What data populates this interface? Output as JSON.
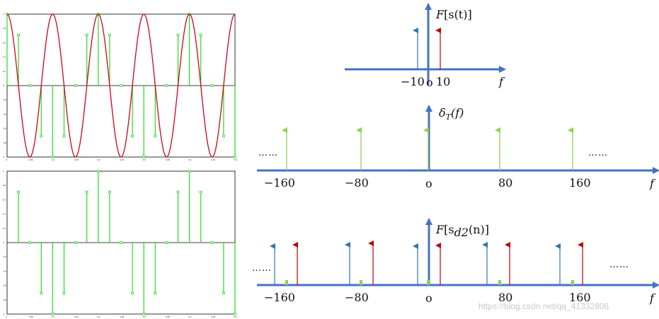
{
  "chart_data": [
    {
      "type": "line",
      "title": "",
      "xlabel": "",
      "ylabel": "",
      "xlim": [
        0,
        0.5
      ],
      "ylim": [
        -1,
        1
      ],
      "x_ticks": [
        "0",
        "0.05",
        "0.1",
        "0.15",
        "0.2",
        "0.25",
        "0.3",
        "0.35",
        "0.4",
        "0.45",
        "0.5"
      ],
      "y_ticks": [
        "1",
        "0.8",
        "0.6",
        "0.4",
        "0.2",
        "0",
        "-0.2",
        "-0.4",
        "-0.6",
        "-0.8",
        "-1"
      ],
      "series": [
        {
          "kind": "continuous",
          "function": "cos(2*pi*10*t)",
          "color": "#d0021b"
        },
        {
          "kind": "stem",
          "color": "#22dd22",
          "x": [
            0,
            0.025,
            0.05,
            0.075,
            0.1,
            0.125,
            0.15,
            0.175,
            0.2,
            0.225,
            0.25,
            0.275,
            0.3,
            0.325,
            0.35,
            0.375,
            0.4,
            0.425,
            0.45,
            0.475,
            0.5
          ],
          "y": [
            1,
            0.707,
            0,
            -0.707,
            -1,
            -0.707,
            0,
            0.707,
            1,
            0.707,
            0,
            -0.707,
            -1,
            -0.707,
            0,
            0.707,
            1,
            0.707,
            0,
            -0.707,
            -1
          ]
        }
      ]
    },
    {
      "type": "scatter",
      "title": "",
      "xlabel": "",
      "ylabel": "",
      "xlim": [
        0,
        0.5
      ],
      "ylim": [
        -1,
        1
      ],
      "x_ticks": [
        "0",
        "0.05",
        "0.1",
        "0.15",
        "0.2",
        "0.25",
        "0.3",
        "0.35",
        "0.4",
        "0.45",
        "0.5"
      ],
      "y_ticks": [
        "1",
        "0.8",
        "0.6",
        "0.4",
        "0.2",
        "0",
        "-0.2",
        "-0.4",
        "-0.6",
        "-0.8",
        "-1"
      ],
      "series": [
        {
          "kind": "stem",
          "color": "#22dd22",
          "x": [
            0.025,
            0.05,
            0.075,
            0.1,
            0.125,
            0.15,
            0.175,
            0.2,
            0.225,
            0.25,
            0.275,
            0.3,
            0.325,
            0.35,
            0.375,
            0.4,
            0.425,
            0.45,
            0.475,
            0.5
          ],
          "y": [
            0.707,
            0,
            -0.707,
            -1,
            -0.707,
            0,
            0.707,
            1,
            0.707,
            0,
            -0.707,
            -1,
            -0.707,
            0,
            0.707,
            1,
            0.707,
            0,
            -0.707,
            -1
          ]
        }
      ]
    },
    {
      "type": "bar",
      "title": "F[s(t)]",
      "xlabel": "f",
      "origin_label": "o",
      "tick_labels": [
        "−10",
        "10"
      ],
      "series": [
        {
          "x": [
            -10
          ],
          "color": "#2e75b6"
        },
        {
          "x": [
            10
          ],
          "color": "#c00000"
        }
      ]
    },
    {
      "type": "bar",
      "title": "δT(f)",
      "xlabel": "f",
      "origin_label": "o",
      "ellipsis": "……",
      "tick_labels": [
        "−160",
        "−80",
        "80",
        "160"
      ],
      "series": [
        {
          "x": [
            -160,
            -80,
            0,
            80,
            160
          ],
          "color": "#92d050"
        }
      ]
    },
    {
      "type": "bar",
      "title": "F[sd2(n)]",
      "xlabel": "f",
      "origin_label": "o",
      "ellipsis": "……",
      "tick_labels": [
        "−160",
        "−80",
        "80",
        "160"
      ],
      "series": [
        {
          "x": [
            -170,
            -90,
            -10,
            70,
            150
          ],
          "color": "#2e75b6"
        },
        {
          "x": [
            -150,
            -70,
            10,
            90,
            170
          ],
          "color": "#c00000"
        },
        {
          "x": [
            -160,
            -80,
            0,
            80,
            160
          ],
          "color": "#92d050"
        }
      ]
    }
  ],
  "labels": {
    "top_title_F": "F",
    "top_title_arg": "[s(t)]",
    "mid_title_delta": "δ",
    "mid_title_sub": "T",
    "mid_title_arg": "(f)",
    "bot_title_F": "F",
    "bot_title_s": "[s",
    "bot_title_sub": "d2",
    "bot_title_arg": "(n)]",
    "top_neg10": "−10",
    "top_pos10": "10",
    "origin": "o",
    "f": "f",
    "neg160": "−160",
    "neg80": "−80",
    "pos80": "80",
    "pos160": "160",
    "ellipsis": "……"
  },
  "watermark": "https://blog.csdn.net/qq_41332806",
  "colors": {
    "axis": "#4472c4",
    "cosine": "#d0021b",
    "samples": "#22dd22",
    "blue": "#2e75b6",
    "red": "#c00000",
    "green": "#92d050"
  }
}
